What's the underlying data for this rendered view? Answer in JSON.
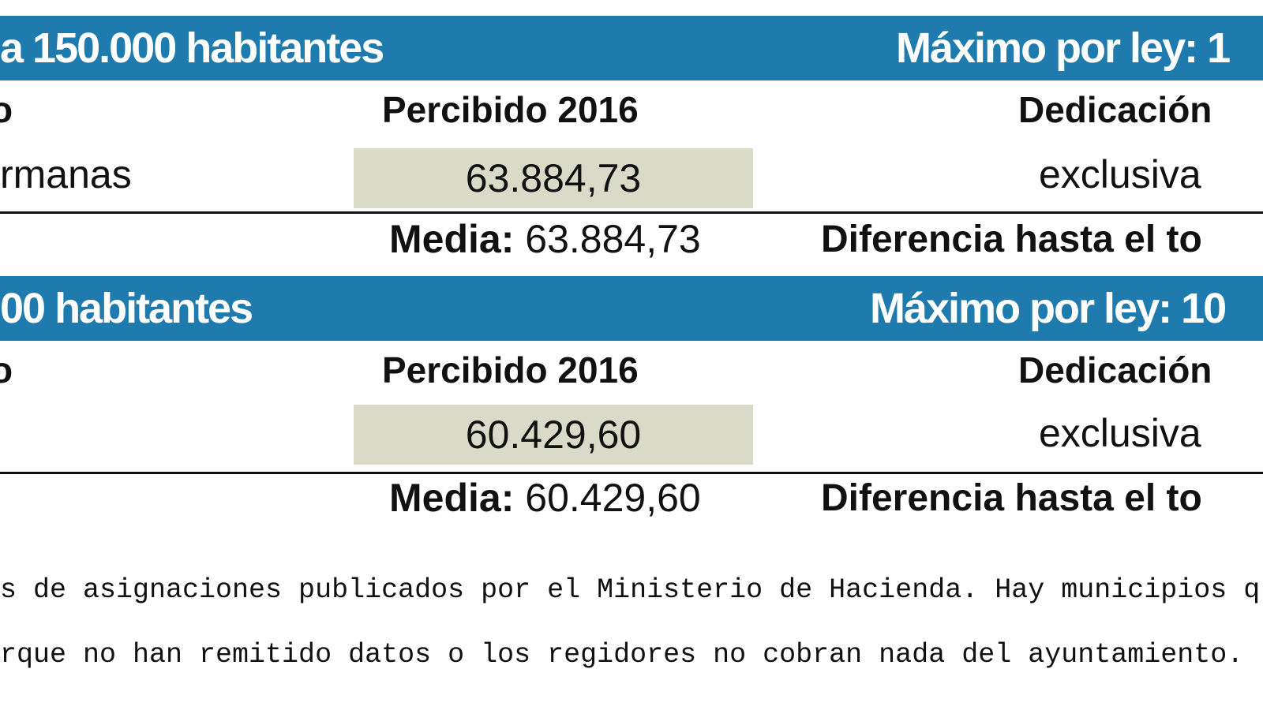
{
  "sections": [
    {
      "band_left": "a 150.000 habitantes",
      "band_right": "Máximo por ley: 1",
      "col_partial": "o",
      "col_percibido": "Percibido 2016",
      "col_dedicacion": "Dedicación",
      "row_name": "rmanas",
      "row_value": "63.884,73",
      "row_dedicacion": "exclusiva",
      "media_label": "Media:",
      "media_value": "63.884,73",
      "diff_label": "Diferencia hasta el to"
    },
    {
      "band_left": "00 habitantes",
      "band_right": "Máximo por ley: 10",
      "col_partial": "o",
      "col_percibido": "Percibido 2016",
      "col_dedicacion": "Dedicación",
      "row_name": "",
      "row_value": "60.429,60",
      "row_dedicacion": "exclusiva",
      "media_label": "Media:",
      "media_value": "60.429,60",
      "diff_label": "Diferencia hasta el to"
    }
  ],
  "footnote": {
    "line1": "s de asignaciones publicados por el Ministerio de Hacienda. Hay municipios q",
    "line2": "rque no han remitido datos o los regidores no cobran nada del ayuntamiento."
  },
  "colors": {
    "band": "#1f7aad",
    "value_cell": "#d9dbc8"
  }
}
